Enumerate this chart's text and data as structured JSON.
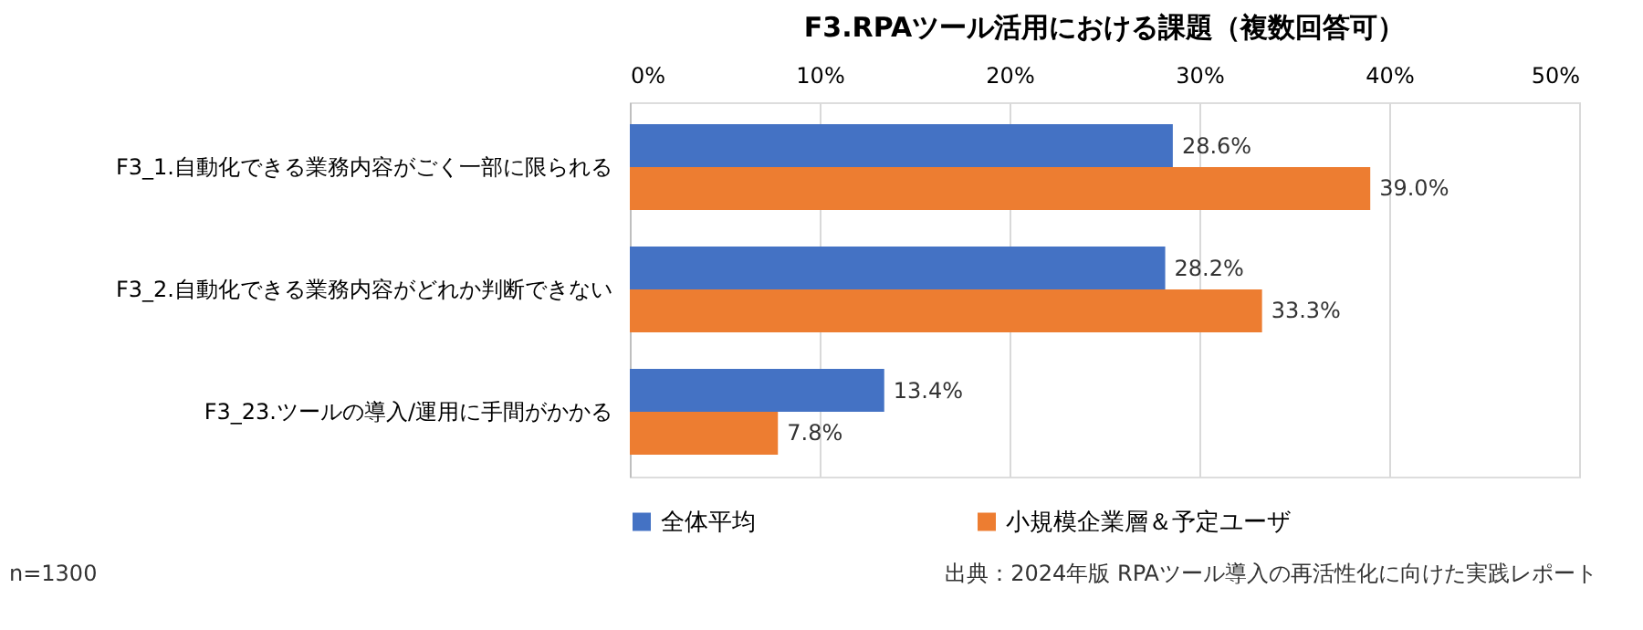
{
  "chart_data": {
    "type": "bar",
    "orientation": "horizontal",
    "title": "F3.RPAツール活用における課題（複数回答可）",
    "categories": [
      "F3_1.自動化できる業務内容がごく一部に限られる",
      "F3_2.自動化できる業務内容がどれか判断できない",
      "F3_23.ツールの導入/運用に手間がかかる"
    ],
    "series": [
      {
        "name": "全体平均",
        "color": "#4472c4",
        "values": [
          28.6,
          28.2,
          13.4
        ],
        "value_labels": [
          "28.6%",
          "28.2%",
          "13.4%"
        ]
      },
      {
        "name": "小規模企業層＆予定ユーザ",
        "color": "#ed7d31",
        "values": [
          39.0,
          33.3,
          7.8
        ],
        "value_labels": [
          "39.0%",
          "33.3%",
          "7.8%"
        ]
      }
    ],
    "xlim": [
      0,
      50
    ],
    "xticks": [
      {
        "value": 0,
        "label": "0%"
      },
      {
        "value": 10,
        "label": "10%"
      },
      {
        "value": 20,
        "label": "20%"
      },
      {
        "value": 30,
        "label": "30%"
      },
      {
        "value": 40,
        "label": "40%"
      },
      {
        "value": 50,
        "label": "50%"
      }
    ],
    "grid": "x",
    "legend": "bottom",
    "annotations": [
      "n=1300",
      "出典：2024年版 RPAツール導入の再活性化に向けた実践レポート"
    ]
  }
}
